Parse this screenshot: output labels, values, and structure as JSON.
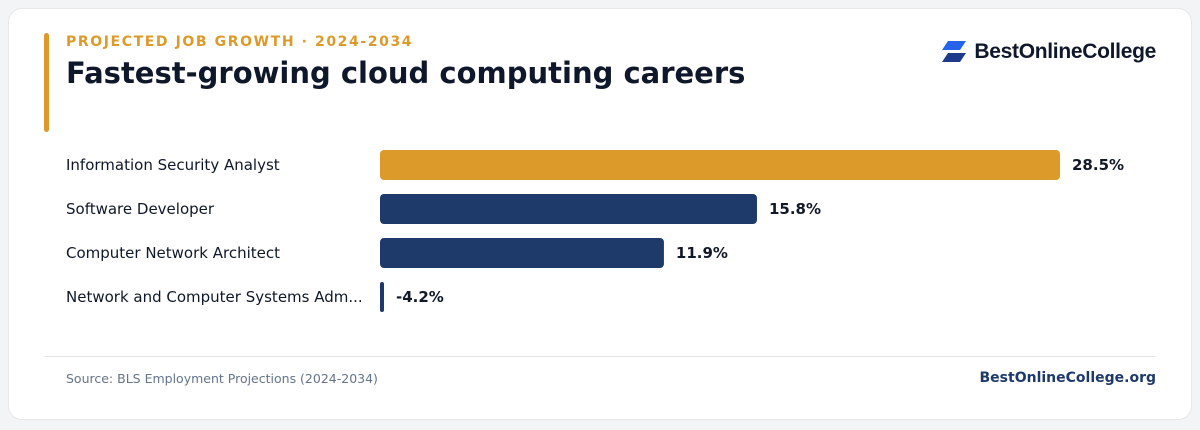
{
  "header": {
    "eyebrow": "PROJECTED JOB GROWTH · 2024-2034",
    "title": "Fastest-growing cloud computing careers"
  },
  "brand": {
    "name": "BestOnlineCollege",
    "icon": "stacked-chevron-logo-icon"
  },
  "footer": {
    "source": "Source: BLS Employment Projections (2024-2034)",
    "site": "BestOnlineCollege.org"
  },
  "colors": {
    "accent": "#DC9A2A",
    "primary": "#1E3A6B",
    "text": "#0F172A",
    "muted": "#64748B",
    "brand_blue": "#2563EB"
  },
  "chart_data": {
    "type": "bar",
    "orientation": "horizontal",
    "title": "Fastest-growing cloud computing careers",
    "subtitle": "PROJECTED JOB GROWTH · 2024-2034",
    "categories": [
      "Information Security Analyst",
      "Software Developer",
      "Computer Network Architect",
      "Network and Computer Systems Adm..."
    ],
    "values": [
      28.5,
      15.8,
      11.9,
      -4.2
    ],
    "value_labels": [
      "28.5%",
      "15.8%",
      "11.9%",
      "-4.2%"
    ],
    "unit": "%",
    "highlight_index": 0,
    "grid": false,
    "legend": "none"
  }
}
